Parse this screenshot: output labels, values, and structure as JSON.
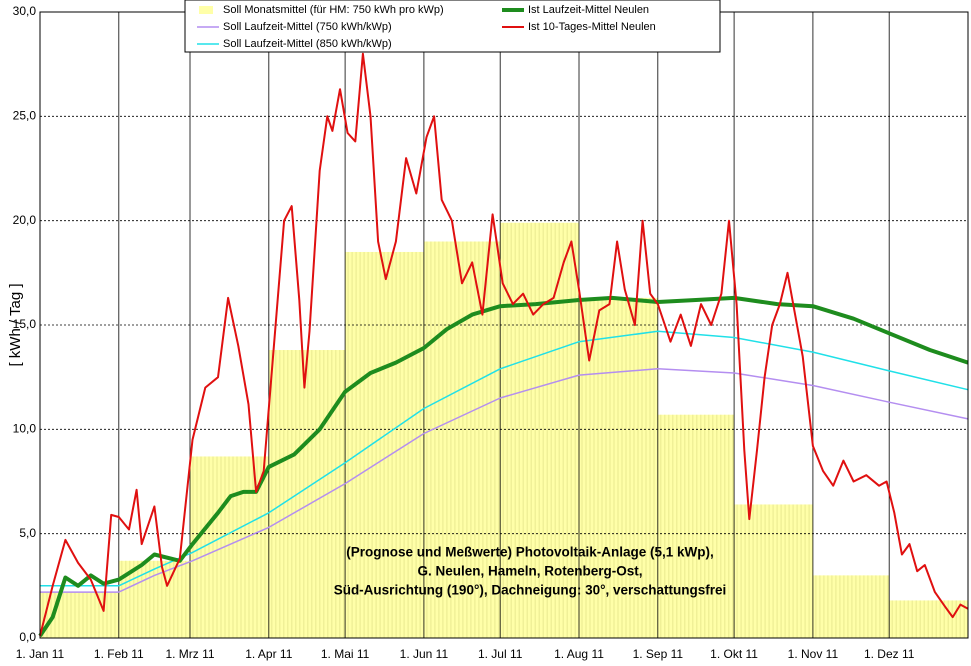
{
  "chart_data": {
    "type": "combo",
    "y_label": "[ kWh / Tag ]",
    "grid": true,
    "xlim": [
      0,
      365
    ],
    "ylim": [
      0,
      30
    ],
    "xticks": [
      {
        "value": 0,
        "label": "1. Jan 11"
      },
      {
        "value": 31,
        "label": "1. Feb 11"
      },
      {
        "value": 59,
        "label": "1. Mrz 11"
      },
      {
        "value": 90,
        "label": "1. Apr 11"
      },
      {
        "value": 120,
        "label": "1. Mai 11"
      },
      {
        "value": 151,
        "label": "1. Jun 11"
      },
      {
        "value": 181,
        "label": "1. Jul 11"
      },
      {
        "value": 212,
        "label": "1. Aug 11"
      },
      {
        "value": 243,
        "label": "1. Sep 11"
      },
      {
        "value": 273,
        "label": "1. Okt 11"
      },
      {
        "value": 304,
        "label": "1. Nov 11"
      },
      {
        "value": 334,
        "label": "1. Dez 11"
      }
    ],
    "yticks": [
      {
        "value": 0,
        "label": "0,0"
      },
      {
        "value": 5,
        "label": "5,0"
      },
      {
        "value": 10,
        "label": "10,0"
      },
      {
        "value": 15,
        "label": "15,0"
      },
      {
        "value": 20,
        "label": "20,0"
      },
      {
        "value": 25,
        "label": "25,0"
      },
      {
        "value": 30,
        "label": "30,0"
      }
    ],
    "annotation": [
      "(Prognose und Meßwerte)  Photovoltaik-Anlage (5,1 kWp),",
      "G. Neulen, Hameln, Rotenberg-Ost,",
      "Süd-Ausrichtung (190°), Dachneigung: 30°, verschattungsfrei"
    ],
    "series": [
      {
        "name": "Soll Monatsmittel (für HM: 750 kWh pro kWp)",
        "type": "bar",
        "color": "#ffffa8",
        "x": [
          0,
          31,
          59,
          90,
          120,
          151,
          181,
          212,
          243,
          273,
          304,
          334
        ],
        "values": [
          2.2,
          3.7,
          8.7,
          13.8,
          18.5,
          19.0,
          19.9,
          16.3,
          10.7,
          6.4,
          3.0,
          1.8
        ]
      },
      {
        "name": "Soll Laufzeit-Mittel (750 kWh/kWp)",
        "type": "line",
        "width": 1.5,
        "color": "#b48ef0",
        "x": [
          0,
          31,
          45,
          60,
          90,
          120,
          151,
          181,
          212,
          243,
          273,
          304,
          334,
          365
        ],
        "values": [
          2.2,
          2.2,
          3.0,
          3.7,
          5.3,
          7.4,
          9.8,
          11.5,
          12.6,
          12.9,
          12.7,
          12.1,
          11.3,
          10.5
        ]
      },
      {
        "name": "Soll Laufzeit-Mittel (850 kWh/kWp)",
        "type": "line",
        "width": 1.5,
        "color": "#20e0e8",
        "x": [
          0,
          31,
          45,
          60,
          90,
          120,
          151,
          181,
          212,
          243,
          273,
          304,
          334,
          365
        ],
        "values": [
          2.5,
          2.5,
          3.3,
          4.1,
          6.0,
          8.4,
          11.0,
          12.9,
          14.2,
          14.7,
          14.4,
          13.7,
          12.8,
          11.9
        ]
      },
      {
        "name": "Ist Laufzeit-Mittel Neulen",
        "type": "line",
        "width": 4,
        "color": "#1e8c1e",
        "x": [
          0,
          5,
          10,
          15,
          20,
          25,
          31,
          40,
          45,
          55,
          60,
          70,
          75,
          80,
          85,
          90,
          100,
          110,
          120,
          130,
          140,
          151,
          160,
          170,
          181,
          195,
          212,
          225,
          243,
          258,
          273,
          290,
          304,
          320,
          334,
          350,
          365
        ],
        "values": [
          0.1,
          1.0,
          2.9,
          2.5,
          3.0,
          2.6,
          2.8,
          3.5,
          4.0,
          3.7,
          4.5,
          6.0,
          6.8,
          7.0,
          7.0,
          8.2,
          8.8,
          10.0,
          11.8,
          12.7,
          13.2,
          13.9,
          14.8,
          15.5,
          15.9,
          16.0,
          16.2,
          16.3,
          16.1,
          16.2,
          16.3,
          16.0,
          15.9,
          15.3,
          14.6,
          13.8,
          13.2
        ]
      },
      {
        "name": "Ist 10-Tages-Mittel Neulen",
        "type": "line",
        "width": 2,
        "color": "#e01010",
        "x": [
          0,
          5,
          10,
          15,
          20,
          25,
          28,
          31,
          35,
          38,
          40,
          45,
          48,
          50,
          55,
          60,
          65,
          70,
          74,
          78,
          82,
          85,
          88,
          92,
          96,
          99,
          102,
          104,
          106,
          110,
          113,
          115,
          118,
          121,
          124,
          127,
          130,
          133,
          136,
          140,
          144,
          148,
          152,
          155,
          158,
          162,
          166,
          170,
          174,
          178,
          182,
          186,
          190,
          194,
          198,
          202,
          206,
          209,
          212,
          216,
          220,
          224,
          227,
          230,
          234,
          237,
          240,
          243,
          248,
          252,
          256,
          260,
          264,
          268,
          271,
          274,
          277,
          279,
          282,
          285,
          288,
          291,
          294,
          297,
          300,
          304,
          308,
          312,
          316,
          320,
          325,
          330,
          333,
          336,
          339,
          342,
          345,
          348,
          352,
          356,
          359,
          362,
          365
        ],
        "values": [
          0.1,
          2.5,
          4.7,
          3.6,
          2.8,
          1.3,
          5.9,
          5.8,
          5.2,
          7.1,
          4.5,
          6.3,
          3.4,
          2.5,
          3.8,
          9.5,
          12.0,
          12.5,
          16.3,
          14.0,
          11.2,
          7.0,
          8.0,
          14.0,
          20.0,
          20.7,
          16.2,
          12.0,
          14.7,
          22.4,
          25.0,
          24.3,
          26.3,
          24.2,
          23.8,
          28.0,
          25.0,
          19.0,
          17.2,
          19.0,
          23.0,
          21.3,
          24.0,
          25.0,
          21.0,
          20.0,
          17.0,
          18.0,
          15.5,
          20.3,
          17.0,
          16.0,
          16.5,
          15.5,
          16.0,
          16.3,
          18.0,
          19.0,
          16.7,
          13.3,
          15.7,
          16.0,
          19.0,
          16.7,
          15.0,
          20.0,
          16.5,
          16.0,
          14.2,
          15.5,
          14.0,
          16.0,
          15.0,
          16.5,
          20.0,
          16.0,
          9.0,
          5.7,
          9.0,
          12.5,
          15.0,
          16.0,
          17.5,
          15.5,
          13.5,
          9.2,
          8.0,
          7.3,
          8.5,
          7.5,
          7.8,
          7.3,
          7.5,
          6.0,
          4.0,
          4.5,
          3.2,
          3.5,
          2.2,
          1.5,
          1.0,
          1.6,
          1.4
        ]
      }
    ]
  }
}
